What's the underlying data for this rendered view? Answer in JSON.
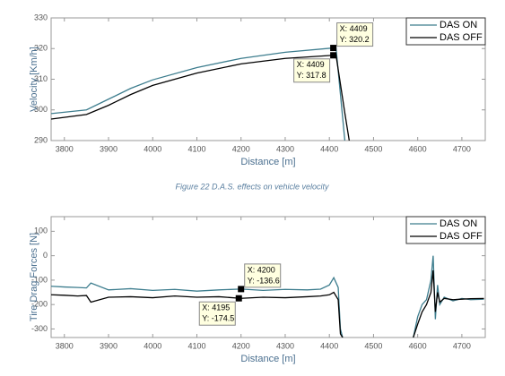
{
  "chart_data": [
    {
      "type": "line",
      "y_label": "Velocity [Km/h]",
      "x_label": "Distance [m]",
      "x": [
        3770,
        3850,
        3900,
        3950,
        4000,
        4100,
        4200,
        4300,
        4409,
        4415,
        4435,
        4445
      ],
      "series": [
        {
          "name": "DAS ON",
          "color": "#3d7d8e",
          "values": [
            298.8,
            300,
            303.5,
            307,
            309.8,
            313.8,
            316.8,
            318.8,
            320.2,
            320.3,
            290,
            null
          ]
        },
        {
          "name": "DAS OFF",
          "color": "#000000",
          "values": [
            297,
            298.5,
            301.5,
            305,
            308,
            312,
            315,
            316.8,
            317.8,
            317.9,
            299,
            290
          ]
        }
      ],
      "xlim": [
        3770,
        4753
      ],
      "ylim": [
        290,
        330
      ],
      "xticks": [
        3800,
        3900,
        4000,
        4100,
        4200,
        4300,
        4400,
        4500,
        4600,
        4700
      ],
      "yticks": [
        290,
        300,
        310,
        320,
        330
      ],
      "legend": "upper right",
      "annotations": [
        {
          "x": 4409,
          "y": 320.2,
          "lines": [
            "X: 4409",
            "Y: 320.2"
          ]
        },
        {
          "x": 4409,
          "y": 317.8,
          "lines": [
            "X: 4409",
            "Y: 317.8"
          ]
        }
      ]
    },
    {
      "type": "line",
      "y_label": "Tire Drag Forces [N]",
      "x_label": "Distance [m]",
      "x": [
        3770,
        3800,
        3830,
        3850,
        3860,
        3900,
        3950,
        4000,
        4050,
        4100,
        4150,
        4200,
        4250,
        4300,
        4350,
        4380,
        4400,
        4410,
        4420,
        4425,
        4430,
        4500,
        4590,
        4600,
        4610,
        4620,
        4630,
        4635,
        4640,
        4645,
        4650,
        4660,
        4680,
        4700,
        4720,
        4750
      ],
      "series": [
        {
          "name": "DAS ON",
          "color": "#3d7d8e",
          "values": [
            -125,
            -128,
            -130,
            -132,
            -112,
            -140,
            -135,
            -142,
            -138,
            -145,
            -140,
            -136.6,
            -142,
            -138,
            -140,
            -137,
            -120,
            -90,
            -130,
            -300,
            -335,
            null,
            -335,
            -250,
            -200,
            -180,
            -100,
            0,
            -260,
            -120,
            -200,
            -170,
            -185,
            -175,
            -180,
            -178
          ]
        },
        {
          "name": "DAS OFF",
          "color": "#000000",
          "values": [
            -160,
            -162,
            -165,
            -163,
            -190,
            -170,
            -168,
            -172,
            -165,
            -170,
            -168,
            -174.5,
            -170,
            -172,
            -168,
            -165,
            -160,
            -150,
            -180,
            -320,
            -335,
            null,
            -335,
            -280,
            -230,
            -200,
            -150,
            -60,
            -230,
            -150,
            -190,
            -175,
            -180,
            -178,
            -176,
            -175
          ]
        }
      ],
      "xlim": [
        3770,
        4753
      ],
      "ylim": [
        -335,
        160
      ],
      "xticks": [
        3800,
        3900,
        4000,
        4100,
        4200,
        4300,
        4400,
        4500,
        4600,
        4700
      ],
      "yticks": [
        -300,
        -200,
        -100,
        0,
        100
      ],
      "legend": "upper right",
      "annotations": [
        {
          "x": 4200,
          "y": -136.6,
          "lines": [
            "X: 4200",
            "Y: -136.6"
          ]
        },
        {
          "x": 4195,
          "y": -174.5,
          "lines": [
            "X: 4195",
            "Y: -174.5"
          ]
        }
      ]
    }
  ],
  "caption": "Figure 22 D.A.S. effects on vehicle velocity"
}
